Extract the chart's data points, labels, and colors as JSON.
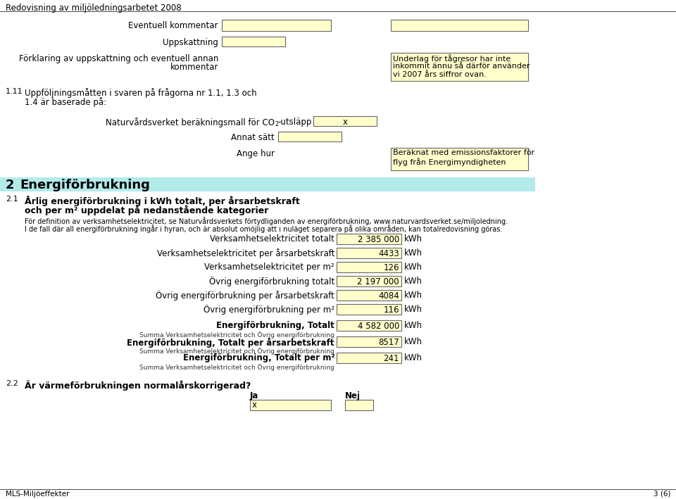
{
  "bg_color": "#ffffff",
  "yellow_fill": "#ffffcc",
  "box_edge": "#666666",
  "header": "Redovisning av miljöledningsarbetet 2008",
  "info_text1": "För definition av verksamhetselektricitet, se Naturvårdsverkets förtydliganden av energiförbrukning, www.naturvardsverket.se/miljoledning.",
  "info_text2": "I de fall där all energiförbrukning ingår i hyran, och är absolut omöjlig att i nuläget separera på olika områden, kan totalredovisning göras.",
  "rows": [
    {
      "label": "Verksamhetselektricitet totalt",
      "value": "2 385 000",
      "unit": "kWh",
      "bold": false
    },
    {
      "label": "Verksamhetselektricitet per årsarbetskraft",
      "value": "4433",
      "unit": "kWh",
      "bold": false
    },
    {
      "label": "Verksamhetselektricitet per m²",
      "value": "126",
      "unit": "kWh",
      "bold": false
    },
    {
      "label": "Övrig energiförbrukning totalt",
      "value": "2 197 000",
      "unit": "kWh",
      "bold": false
    },
    {
      "label": "Övrig energiförbrukning per årsarbetskraft",
      "value": "4084",
      "unit": "kWh",
      "bold": false
    },
    {
      "label": "Övrig energiförbrukning per m²",
      "value": "116",
      "unit": "kWh",
      "bold": false
    },
    {
      "label": "Energiförbrukning, Totalt",
      "value": "4 582 000",
      "unit": "kWh",
      "bold": true,
      "subtext": "Summa Verksamhetselektricitet och Övrig energiförbrukning"
    },
    {
      "label": "Energiförbrukning, Totalt per årsarbetskraft",
      "value": "8517",
      "unit": "kWh",
      "bold": true,
      "subtext": "Summa Verksamhetselektricitet och Övrig energiförbrukning"
    },
    {
      "label": "Energiförbrukning, Totalt per m²",
      "value": "241",
      "unit": "kWh",
      "bold": true,
      "subtext": "Summa Verksamhetselektricitet och Övrig energiförbrukning"
    }
  ],
  "footer_left": "MLS-Miljöeffekter",
  "footer_right": "3 (6)"
}
